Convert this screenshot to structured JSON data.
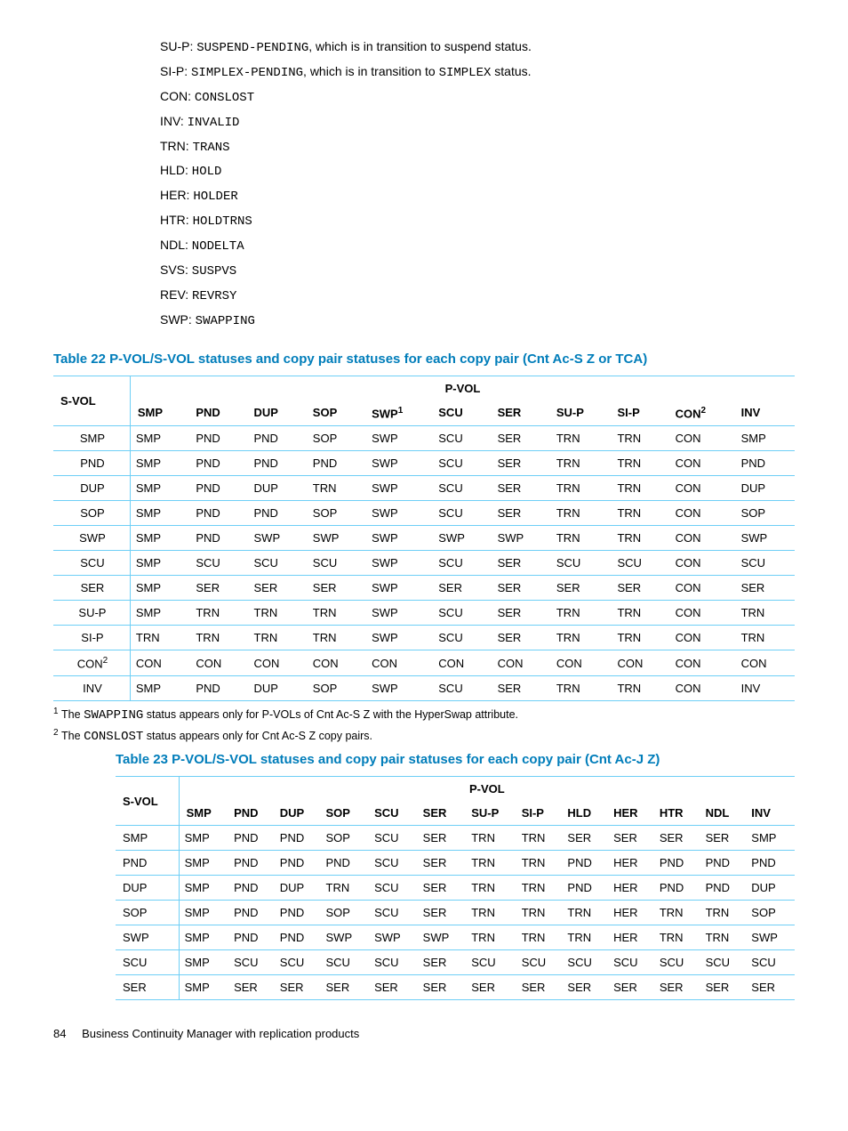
{
  "definitions": [
    {
      "abbr": "SU-P",
      "code": "SUSPEND-PENDING",
      "rest": ", which is in transition to suspend status."
    },
    {
      "abbr": "SI-P",
      "code": "SIMPLEX-PENDING",
      "rest": ", which is in transition to ",
      "code2": "SIMPLEX",
      "rest2": " status."
    },
    {
      "abbr": "CON",
      "code": "CONSLOST"
    },
    {
      "abbr": "INV",
      "code": "INVALID"
    },
    {
      "abbr": "TRN",
      "code": "TRANS"
    },
    {
      "abbr": "HLD",
      "code": "HOLD"
    },
    {
      "abbr": "HER",
      "code": "HOLDER"
    },
    {
      "abbr": "HTR",
      "code": "HOLDTRNS"
    },
    {
      "abbr": "NDL",
      "code": "NODELTA"
    },
    {
      "abbr": "SVS",
      "code": "SUSPVS"
    },
    {
      "abbr": "REV",
      "code": "REVRSY"
    },
    {
      "abbr": "SWP",
      "code": "SWAPPING"
    }
  ],
  "table22": {
    "caption": "Table 22 P-VOL/S-VOL statuses and copy pair statuses for each copy pair (Cnt Ac-S Z or TCA)",
    "corner": "S-VOL",
    "pvol_head": "P-VOL",
    "columns": [
      "SMP",
      "PND",
      "DUP",
      "SOP",
      "SWP",
      "SCU",
      "SER",
      "SU-P",
      "SI-P",
      "CON",
      "INV"
    ],
    "col_sup": {
      "4": "1",
      "9": "2"
    },
    "row_labels": [
      "SMP",
      "PND",
      "DUP",
      "SOP",
      "SWP",
      "SCU",
      "SER",
      "SU-P",
      "SI-P",
      "CON",
      "INV"
    ],
    "row_sup": {
      "9": "2"
    },
    "rows": [
      [
        "SMP",
        "PND",
        "PND",
        "SOP",
        "SWP",
        "SCU",
        "SER",
        "TRN",
        "TRN",
        "CON",
        "SMP"
      ],
      [
        "SMP",
        "PND",
        "PND",
        "PND",
        "SWP",
        "SCU",
        "SER",
        "TRN",
        "TRN",
        "CON",
        "PND"
      ],
      [
        "SMP",
        "PND",
        "DUP",
        "TRN",
        "SWP",
        "SCU",
        "SER",
        "TRN",
        "TRN",
        "CON",
        "DUP"
      ],
      [
        "SMP",
        "PND",
        "PND",
        "SOP",
        "SWP",
        "SCU",
        "SER",
        "TRN",
        "TRN",
        "CON",
        "SOP"
      ],
      [
        "SMP",
        "PND",
        "SWP",
        "SWP",
        "SWP",
        "SWP",
        "SWP",
        "TRN",
        "TRN",
        "CON",
        "SWP"
      ],
      [
        "SMP",
        "SCU",
        "SCU",
        "SCU",
        "SWP",
        "SCU",
        "SER",
        "SCU",
        "SCU",
        "CON",
        "SCU"
      ],
      [
        "SMP",
        "SER",
        "SER",
        "SER",
        "SWP",
        "SER",
        "SER",
        "SER",
        "SER",
        "CON",
        "SER"
      ],
      [
        "SMP",
        "TRN",
        "TRN",
        "TRN",
        "SWP",
        "SCU",
        "SER",
        "TRN",
        "TRN",
        "CON",
        "TRN"
      ],
      [
        "TRN",
        "TRN",
        "TRN",
        "TRN",
        "SWP",
        "SCU",
        "SER",
        "TRN",
        "TRN",
        "CON",
        "TRN"
      ],
      [
        "CON",
        "CON",
        "CON",
        "CON",
        "CON",
        "CON",
        "CON",
        "CON",
        "CON",
        "CON",
        "CON"
      ],
      [
        "SMP",
        "PND",
        "DUP",
        "SOP",
        "SWP",
        "SCU",
        "SER",
        "TRN",
        "TRN",
        "CON",
        "INV"
      ]
    ],
    "footnotes": [
      {
        "n": "1",
        "pre": "The ",
        "code": "SWAPPING",
        "post": " status appears only for P-VOLs of Cnt Ac-S Z with the HyperSwap attribute."
      },
      {
        "n": "2",
        "pre": "The ",
        "code": "CONSLOST",
        "post": " status appears only for Cnt Ac-S Z copy pairs."
      }
    ]
  },
  "table23": {
    "caption": "Table 23 P-VOL/S-VOL statuses and copy pair statuses for each copy pair (Cnt Ac-J Z)",
    "corner": "S-VOL",
    "pvol_head": "P-VOL",
    "columns": [
      "SMP",
      "PND",
      "DUP",
      "SOP",
      "SCU",
      "SER",
      "SU-P",
      "SI-P",
      "HLD",
      "HER",
      "HTR",
      "NDL",
      "INV"
    ],
    "row_labels": [
      "SMP",
      "PND",
      "DUP",
      "SOP",
      "SWP",
      "SCU",
      "SER"
    ],
    "rows": [
      [
        "SMP",
        "PND",
        "PND",
        "SOP",
        "SCU",
        "SER",
        "TRN",
        "TRN",
        "SER",
        "SER",
        "SER",
        "SER",
        "SMP"
      ],
      [
        "SMP",
        "PND",
        "PND",
        "PND",
        "SCU",
        "SER",
        "TRN",
        "TRN",
        "PND",
        "HER",
        "PND",
        "PND",
        "PND"
      ],
      [
        "SMP",
        "PND",
        "DUP",
        "TRN",
        "SCU",
        "SER",
        "TRN",
        "TRN",
        "PND",
        "HER",
        "PND",
        "PND",
        "DUP"
      ],
      [
        "SMP",
        "PND",
        "PND",
        "SOP",
        "SCU",
        "SER",
        "TRN",
        "TRN",
        "TRN",
        "HER",
        "TRN",
        "TRN",
        "SOP"
      ],
      [
        "SMP",
        "PND",
        "PND",
        "SWP",
        "SWP",
        "SWP",
        "TRN",
        "TRN",
        "TRN",
        "HER",
        "TRN",
        "TRN",
        "SWP"
      ],
      [
        "SMP",
        "SCU",
        "SCU",
        "SCU",
        "SCU",
        "SER",
        "SCU",
        "SCU",
        "SCU",
        "SCU",
        "SCU",
        "SCU",
        "SCU"
      ],
      [
        "SMP",
        "SER",
        "SER",
        "SER",
        "SER",
        "SER",
        "SER",
        "SER",
        "SER",
        "SER",
        "SER",
        "SER",
        "SER"
      ]
    ]
  },
  "footer": {
    "page": "84",
    "title": "Business Continuity Manager with replication products"
  },
  "colors": {
    "accent": "#007dba",
    "rule": "#6ecff6",
    "text": "#000000",
    "background": "#ffffff"
  }
}
